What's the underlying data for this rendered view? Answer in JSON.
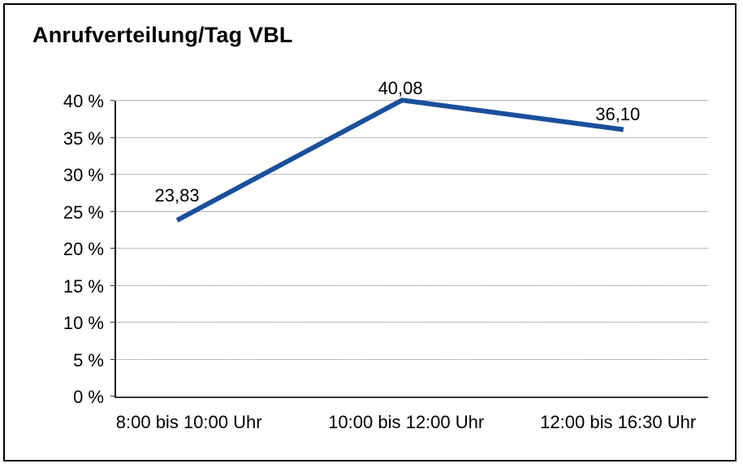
{
  "chart_data": {
    "type": "line",
    "title": "Anrufverteilung/Tag VBL",
    "categories": [
      "8:00 bis 10:00 Uhr",
      "10:00 bis 12:00 Uhr",
      "12:00 bis 16:30 Uhr"
    ],
    "values": [
      23.83,
      40.08,
      36.1
    ],
    "data_labels": [
      "23,83",
      "40,08",
      "36,10"
    ],
    "xlabel": "",
    "ylabel": "",
    "ylim": [
      0,
      40
    ],
    "ytick_step": 5,
    "ytick_labels": [
      "0 %",
      "5 %",
      "10 %",
      "15 %",
      "20 %",
      "25 %",
      "30 %",
      "35 %",
      "40 %"
    ],
    "grid": "horizontal-dotted",
    "legend": "none",
    "line_color": "#1A4F9C",
    "frame_color": "#000000"
  }
}
